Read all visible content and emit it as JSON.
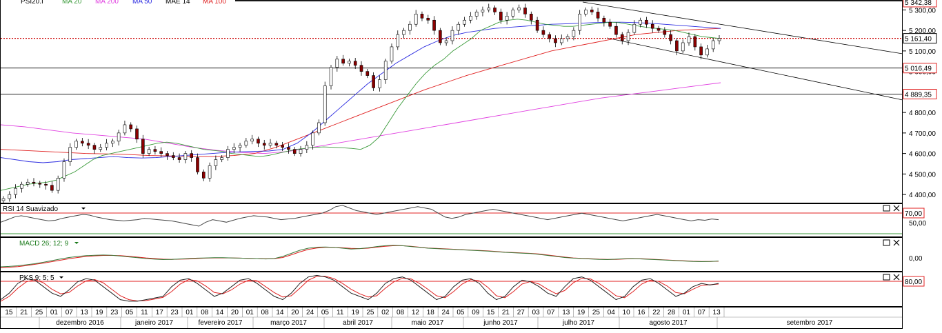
{
  "chart_data": {
    "type": "line",
    "price_panel": {
      "legend": [
        "PSI20.I",
        "MA 20",
        "MA 200",
        "MA 50",
        "MAE 14",
        "MA 100"
      ],
      "legend_colors": [
        "#000000",
        "#3a9a3a",
        "#e040e0",
        "#2a2ae0",
        "#000000",
        "#e02020"
      ],
      "y_ticks": [
        "5 300,00",
        "5 200,00",
        "5 100,00",
        "5 000,00",
        "4 900,00",
        "4 800,00",
        "4 700,00",
        "4 600,00",
        "4 500,00",
        "4 400,00"
      ],
      "ylim": [
        4360,
        5345
      ],
      "price_tags": [
        {
          "label": "5 342,38",
          "value": 5342.38,
          "color": "#e02020"
        },
        {
          "label": "5 161,40",
          "value": 5161.4,
          "color": "#000000"
        },
        {
          "label": "5 016,49",
          "value": 5016.49,
          "color": "#e02020"
        },
        {
          "label": "4 889,35",
          "value": 4889.35,
          "color": "#e02020"
        }
      ],
      "close_series": [
        4380,
        4400,
        4430,
        4450,
        4460,
        4455,
        4450,
        4445,
        4420,
        4480,
        4560,
        4630,
        4660,
        4650,
        4640,
        4620,
        4630,
        4650,
        4660,
        4700,
        4740,
        4720,
        4670,
        4600,
        4620,
        4610,
        4600,
        4590,
        4580,
        4570,
        4600,
        4580,
        4510,
        4480,
        4540,
        4570,
        4580,
        4620,
        4630,
        4640,
        4660,
        4670,
        4650,
        4640,
        4650,
        4640,
        4630,
        4620,
        4600,
        4620,
        4640,
        4700,
        4750,
        4930,
        5020,
        5060,
        5040,
        5050,
        5030,
        5000,
        4980,
        4920,
        4960,
        5050,
        5120,
        5180,
        5200,
        5230,
        5280,
        5260,
        5250,
        5200,
        5140,
        5150,
        5200,
        5230,
        5250,
        5270,
        5290,
        5300,
        5310,
        5290,
        5250,
        5270,
        5300,
        5310,
        5280,
        5250,
        5200,
        5180,
        5160,
        5140,
        5160,
        5170,
        5200,
        5280,
        5300,
        5290,
        5260,
        5240,
        5220,
        5180,
        5150,
        5190,
        5230,
        5250,
        5230,
        5210,
        5200,
        5180,
        5150,
        5100,
        5140,
        5170,
        5120,
        5080,
        5110,
        5150,
        5161
      ],
      "ma20": [
        4420,
        4430,
        4440,
        4450,
        4455,
        4460,
        4470,
        4490,
        4510,
        4540,
        4570,
        4590,
        4600,
        4610,
        4620,
        4630,
        4640,
        4650,
        4655,
        4650,
        4640,
        4630,
        4620,
        4615,
        4610,
        4600,
        4595,
        4590,
        4585,
        4590,
        4600,
        4610,
        4620,
        4625,
        4630,
        4632,
        4630,
        4628,
        4625,
        4620,
        4640,
        4680,
        4750,
        4820,
        4880,
        4940,
        4990,
        5030,
        5060,
        5100,
        5130,
        5160,
        5200,
        5220,
        5240,
        5250,
        5255,
        5250,
        5240,
        5230,
        5225,
        5220,
        5220,
        5225,
        5230,
        5235,
        5240,
        5238,
        5230,
        5222,
        5215,
        5210,
        5205,
        5200,
        5190,
        5180,
        5170,
        5165,
        5160
      ],
      "ma50": [
        4580,
        4570,
        4560,
        4555,
        4560,
        4570,
        4575,
        4580,
        4585,
        4580,
        4578,
        4580,
        4585,
        4590,
        4595,
        4600,
        4605,
        4608,
        4610,
        4612,
        4620,
        4650,
        4700,
        4760,
        4820,
        4880,
        4940,
        4990,
        5040,
        5080,
        5120,
        5150,
        5175,
        5190,
        5200,
        5210,
        5215,
        5220,
        5225,
        5230,
        5232,
        5235,
        5238,
        5240,
        5240,
        5238,
        5235,
        5230,
        5225,
        5220,
        5215,
        5210
      ],
      "ma100": [
        4620,
        4615,
        4610,
        4605,
        4600,
        4598,
        4595,
        4590,
        4588,
        4586,
        4585,
        4590,
        4600,
        4630,
        4670,
        4710,
        4750,
        4790,
        4830,
        4870,
        4910,
        4945,
        4980,
        5010,
        5040,
        5070,
        5100,
        5120,
        5140,
        5160,
        5180,
        5190,
        5200,
        5205,
        5210
      ],
      "ma200": [
        4740,
        4730,
        4715,
        4700,
        4690,
        4680,
        4670,
        4650,
        4630,
        4615,
        4605,
        4600,
        4610,
        4630,
        4650,
        4670,
        4690,
        4710,
        4730,
        4750,
        4770,
        4790,
        4810,
        4830,
        4850,
        4870,
        4885,
        4900,
        4915,
        4930,
        4945
      ]
    },
    "rsi_panel": {
      "title": "RSI 14 Suavizado",
      "level_label": "70,00",
      "level": 70,
      "axis_label": "50,00",
      "axis_value": 50,
      "ylim": [
        30,
        80
      ],
      "values": [
        52,
        56,
        60,
        62,
        60,
        58,
        56,
        54,
        55,
        58,
        60,
        62,
        64,
        63,
        60,
        58,
        56,
        55,
        54,
        55,
        56,
        58,
        57,
        56,
        55,
        54,
        52,
        50,
        48,
        46,
        52,
        56,
        54,
        52,
        55,
        58,
        60,
        62,
        61,
        60,
        58,
        56,
        57,
        58,
        60,
        62,
        64,
        66,
        70,
        76,
        78,
        74,
        70,
        68,
        66,
        64,
        66,
        68,
        70,
        72,
        74,
        76,
        74,
        72,
        66,
        60,
        58,
        60,
        64,
        66,
        68,
        70,
        72,
        70,
        68,
        66,
        64,
        62,
        60,
        58,
        56,
        58,
        60,
        62,
        64,
        66,
        64,
        62,
        60,
        58,
        56,
        54,
        56,
        58,
        60,
        62,
        64,
        62,
        60,
        58,
        56,
        54,
        56,
        55,
        57,
        56
      ],
      "close_icon": "close-icon",
      "maximize_icon": "maximize-icon"
    },
    "macd_panel": {
      "title": "MACD 26; 12; 9",
      "axis_label": "0,00",
      "axis_value": 0,
      "ylim": [
        -60,
        100
      ],
      "macd": [
        -40,
        -38,
        -35,
        -30,
        -25,
        -18,
        -10,
        -2,
        5,
        10,
        14,
        16,
        17,
        16,
        12,
        8,
        4,
        0,
        -3,
        -5,
        -4,
        -2,
        0,
        2,
        3,
        4,
        4,
        3,
        2,
        1,
        0,
        -2,
        0,
        10,
        25,
        40,
        50,
        55,
        56,
        54,
        50,
        46,
        48,
        52,
        58,
        62,
        64,
        62,
        58,
        54,
        50,
        48,
        46,
        44,
        42,
        40,
        38,
        36,
        33,
        30,
        28,
        26,
        24,
        20,
        15,
        10,
        5,
        2,
        0,
        -2,
        -4,
        -5,
        -3,
        -1,
        0,
        -2,
        -4,
        -6,
        -8,
        -10,
        -12,
        -14,
        -15,
        -14,
        -12
      ],
      "signal": [
        -45,
        -42,
        -39,
        -34,
        -28,
        -22,
        -15,
        -8,
        -1,
        5,
        10,
        13,
        15,
        15,
        14,
        11,
        7,
        3,
        0,
        -3,
        -4,
        -3,
        -2,
        0,
        2,
        3,
        3,
        3,
        2,
        1,
        0,
        -1,
        -1,
        5,
        18,
        32,
        44,
        51,
        54,
        54,
        52,
        49,
        48,
        50,
        55,
        59,
        62,
        62,
        59,
        55,
        51,
        49,
        47,
        45,
        43,
        41,
        39,
        37,
        34,
        31,
        29,
        27,
        25,
        22,
        17,
        12,
        7,
        3,
        1,
        -1,
        -3,
        -4,
        -4,
        -2,
        -1,
        -1,
        -3,
        -5,
        -7,
        -9,
        -11,
        -13,
        -14,
        -14,
        -13
      ]
    },
    "pks_panel": {
      "title": "PKS 9; 5; 5",
      "level_label": "80,00",
      "level": 80,
      "ylim": [
        0,
        100
      ],
      "k": [
        20,
        40,
        70,
        85,
        80,
        60,
        40,
        30,
        50,
        75,
        85,
        80,
        60,
        40,
        20,
        15,
        15,
        20,
        25,
        30,
        60,
        80,
        85,
        70,
        50,
        30,
        40,
        60,
        80,
        85,
        70,
        50,
        30,
        20,
        40,
        70,
        90,
        95,
        90,
        80,
        60,
        40,
        30,
        20,
        40,
        70,
        85,
        90,
        80,
        60,
        40,
        20,
        30,
        60,
        80,
        85,
        70,
        40,
        20,
        30,
        60,
        80,
        75,
        60,
        40,
        30,
        60,
        85,
        90,
        80,
        60,
        40,
        20,
        30,
        60,
        80,
        85,
        70,
        50,
        30,
        40,
        60,
        70,
        65,
        70
      ],
      "d": [
        15,
        30,
        55,
        75,
        82,
        72,
        52,
        38,
        42,
        62,
        78,
        82,
        72,
        52,
        32,
        20,
        16,
        17,
        22,
        27,
        45,
        68,
        82,
        78,
        62,
        42,
        38,
        50,
        68,
        80,
        78,
        60,
        42,
        28,
        32,
        55,
        80,
        92,
        92,
        85,
        70,
        52,
        38,
        28,
        32,
        55,
        75,
        86,
        84,
        70,
        52,
        32,
        26,
        45,
        68,
        82,
        78,
        58,
        32,
        26,
        45,
        68,
        76,
        68,
        52,
        38,
        48,
        72,
        86,
        84,
        70,
        52,
        32,
        26,
        45,
        68,
        80,
        76,
        62,
        42,
        38,
        52,
        64,
        66,
        68
      ]
    },
    "x_axis": {
      "day_ticks": [
        "15",
        "21",
        "25",
        "01",
        "07",
        "13",
        "19",
        "23",
        "05",
        "11",
        "17",
        "23",
        "01",
        "08",
        "14",
        "20",
        "01",
        "08",
        "14",
        "20",
        "24",
        "05",
        "11",
        "19",
        "25",
        "02",
        "08",
        "12",
        "18",
        "24",
        "05",
        "09",
        "15",
        "21",
        "27",
        "03",
        "07",
        "13",
        "19",
        "25",
        "04",
        "10",
        "16",
        "22",
        "28",
        "01",
        "07",
        "13"
      ],
      "month_labels": [
        "dezembro 2016",
        "janeiro 2017",
        "fevereiro 2017",
        "março 2017",
        "abril 2017",
        "maio 2017",
        "junho 2017",
        "julho 2017",
        "agosto 2017",
        "setembro 2017"
      ]
    }
  }
}
